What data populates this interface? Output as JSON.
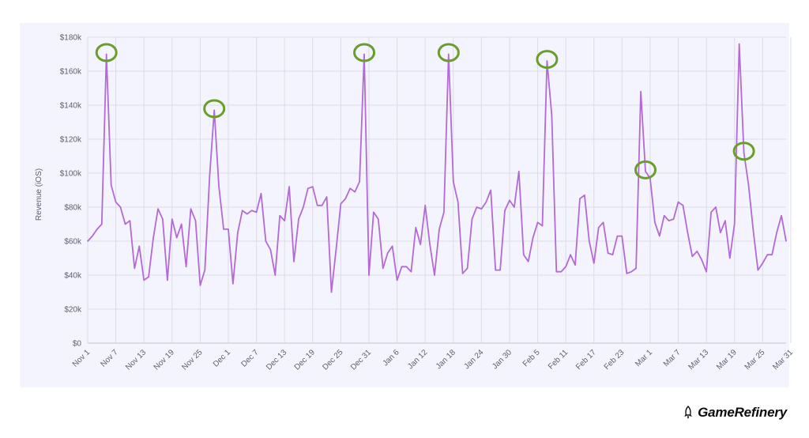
{
  "chart_data": {
    "type": "line",
    "ylabel": "Revenue (iOS)",
    "ylim": [
      0,
      180000
    ],
    "y_ticks": [
      "$0",
      "$20k",
      "$40k",
      "$60k",
      "$80k",
      "$100k",
      "$120k",
      "$140k",
      "$160k",
      "$180k"
    ],
    "x_ticks": [
      "Nov 1",
      "Nov 7",
      "Nov 13",
      "Nov 19",
      "Nov 25",
      "Dec 1",
      "Dec 7",
      "Dec 13",
      "Dec 19",
      "Dec 25",
      "Dec 31",
      "Jan 6",
      "Jan 12",
      "Jan 18",
      "Jan 24",
      "Jan 30",
      "Feb 5",
      "Feb 11",
      "Feb 17",
      "Feb 23",
      "Mar 1",
      "Mar 7",
      "Mar 13",
      "Mar 19",
      "Mar 25",
      "Mar 31"
    ],
    "x_start": "Nov 1",
    "x_end": "Mar 31",
    "grid": true,
    "line_color": "#b36ad6",
    "highlight_color": "#6a9e2c",
    "highlighted_peaks": [
      "Nov 5",
      "Nov 28",
      "Dec 30",
      "Jan 17",
      "Feb 7",
      "Feb 28",
      "Mar 21"
    ],
    "values": [
      60000,
      63000,
      67000,
      70000,
      170000,
      93000,
      83000,
      80000,
      70000,
      72000,
      44000,
      57000,
      37000,
      39000,
      62000,
      79000,
      73000,
      37000,
      73000,
      62000,
      70000,
      45000,
      79000,
      72000,
      34000,
      43000,
      98000,
      137000,
      92000,
      67000,
      67000,
      35000,
      65000,
      78000,
      76000,
      78000,
      77000,
      88000,
      60000,
      55000,
      40000,
      75000,
      72000,
      92000,
      48000,
      73000,
      80000,
      91000,
      92000,
      81000,
      81000,
      86000,
      30000,
      55000,
      82000,
      85000,
      91000,
      89000,
      95000,
      170000,
      40000,
      77000,
      73000,
      44000,
      53000,
      57000,
      37000,
      45000,
      45000,
      42000,
      68000,
      58000,
      81000,
      58000,
      40000,
      67000,
      77000,
      170000,
      95000,
      83000,
      41000,
      44000,
      73000,
      80000,
      79000,
      83000,
      90000,
      43000,
      43000,
      78000,
      84000,
      80000,
      101000,
      52000,
      48000,
      62000,
      71000,
      69000,
      166000,
      134000,
      42000,
      42000,
      45000,
      52000,
      46000,
      85000,
      87000,
      60000,
      47000,
      68000,
      71000,
      53000,
      52000,
      63000,
      63000,
      41000,
      42000,
      44000,
      148000,
      101000,
      97000,
      71000,
      63000,
      75000,
      72000,
      73000,
      83000,
      81000,
      65000,
      51000,
      54000,
      49000,
      42000,
      77000,
      80000,
      65000,
      72000,
      50000,
      70000,
      176000,
      112000,
      93000,
      66000,
      43000,
      47000,
      52000,
      52000,
      65000,
      75000,
      60000
    ]
  },
  "brand": {
    "name": "GameRefinery"
  }
}
